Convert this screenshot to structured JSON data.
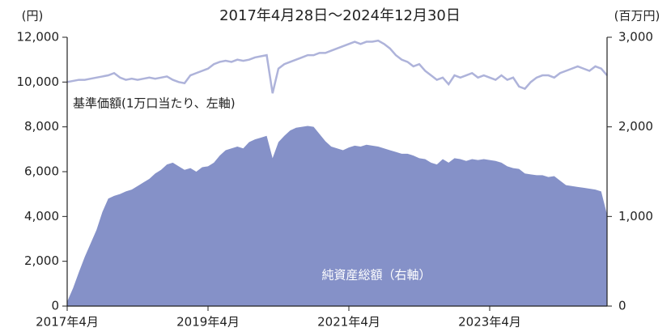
{
  "chart_data": {
    "type": "line",
    "title": "2017年4月28日～2024年12月30日",
    "y_unit": "(円)",
    "y2_unit": "(百万円)",
    "x": [
      "2017-04",
      "2017-05",
      "2017-06",
      "2017-07",
      "2017-08",
      "2017-09",
      "2017-10",
      "2017-11",
      "2017-12",
      "2018-01",
      "2018-02",
      "2018-03",
      "2018-04",
      "2018-05",
      "2018-06",
      "2018-07",
      "2018-08",
      "2018-09",
      "2018-10",
      "2018-11",
      "2018-12",
      "2019-01",
      "2019-02",
      "2019-03",
      "2019-04",
      "2019-05",
      "2019-06",
      "2019-07",
      "2019-08",
      "2019-09",
      "2019-10",
      "2019-11",
      "2019-12",
      "2020-01",
      "2020-02",
      "2020-03",
      "2020-04",
      "2020-05",
      "2020-06",
      "2020-07",
      "2020-08",
      "2020-09",
      "2020-10",
      "2020-11",
      "2020-12",
      "2021-01",
      "2021-02",
      "2021-03",
      "2021-04",
      "2021-05",
      "2021-06",
      "2021-07",
      "2021-08",
      "2021-09",
      "2021-10",
      "2021-11",
      "2021-12",
      "2022-01",
      "2022-02",
      "2022-03",
      "2022-04",
      "2022-05",
      "2022-06",
      "2022-07",
      "2022-08",
      "2022-09",
      "2022-10",
      "2022-11",
      "2022-12",
      "2023-01",
      "2023-02",
      "2023-03",
      "2023-04",
      "2023-05",
      "2023-06",
      "2023-07",
      "2023-08",
      "2023-09",
      "2023-10",
      "2023-11",
      "2023-12",
      "2024-01",
      "2024-02",
      "2024-03",
      "2024-04",
      "2024-05",
      "2024-06",
      "2024-07",
      "2024-08",
      "2024-09",
      "2024-10",
      "2024-11",
      "2024-12"
    ],
    "series": [
      {
        "name": "基準価額(1万口当たり、左軸)",
        "type": "line",
        "color": "#aeb3da",
        "axis": "y",
        "values": [
          10000,
          10050,
          10100,
          10100,
          10150,
          10200,
          10250,
          10300,
          10400,
          10200,
          10100,
          10150,
          10100,
          10150,
          10200,
          10150,
          10200,
          10250,
          10100,
          10000,
          9950,
          10300,
          10400,
          10500,
          10600,
          10800,
          10900,
          10950,
          10900,
          11000,
          10950,
          11000,
          11100,
          11150,
          11200,
          9500,
          10600,
          10800,
          10900,
          11000,
          11100,
          11200,
          11200,
          11300,
          11300,
          11400,
          11500,
          11600,
          11700,
          11800,
          11700,
          11800,
          11800,
          11850,
          11700,
          11500,
          11200,
          11000,
          10900,
          10700,
          10800,
          10500,
          10300,
          10100,
          10200,
          9900,
          10300,
          10200,
          10300,
          10400,
          10200,
          10300,
          10200,
          10100,
          10300,
          10100,
          10200,
          9800,
          9700,
          10000,
          10200,
          10300,
          10300,
          10200,
          10400,
          10500,
          10600,
          10700,
          10600,
          10500,
          10700,
          10600,
          10300
        ]
      },
      {
        "name": "純資産総額（右軸）",
        "type": "area",
        "color": "#8591c8",
        "axis": "y2",
        "values": [
          50,
          200,
          380,
          550,
          700,
          850,
          1050,
          1200,
          1230,
          1250,
          1280,
          1300,
          1340,
          1380,
          1420,
          1480,
          1520,
          1580,
          1600,
          1560,
          1520,
          1540,
          1500,
          1550,
          1560,
          1600,
          1680,
          1740,
          1760,
          1780,
          1760,
          1830,
          1860,
          1880,
          1900,
          1650,
          1830,
          1900,
          1960,
          1990,
          2000,
          2010,
          2000,
          1920,
          1840,
          1780,
          1760,
          1740,
          1770,
          1790,
          1780,
          1800,
          1790,
          1780,
          1760,
          1740,
          1720,
          1700,
          1700,
          1680,
          1650,
          1640,
          1600,
          1580,
          1640,
          1600,
          1650,
          1640,
          1620,
          1640,
          1630,
          1640,
          1630,
          1620,
          1600,
          1560,
          1540,
          1530,
          1480,
          1470,
          1460,
          1460,
          1440,
          1450,
          1400,
          1350,
          1340,
          1330,
          1320,
          1310,
          1300,
          1280,
          1020
        ]
      }
    ],
    "xlim": [
      "2017-04",
      "2024-12"
    ],
    "xticks": [
      {
        "value": "2017-04",
        "label": "2017年4月"
      },
      {
        "value": "2019-04",
        "label": "2019年4月"
      },
      {
        "value": "2021-04",
        "label": "2021年4月"
      },
      {
        "value": "2023-04",
        "label": "2023年4月"
      }
    ],
    "ylim": [
      0,
      12000
    ],
    "yticks": [
      0,
      {
        "value": 2000,
        "label": "2,000"
      },
      {
        "value": 4000,
        "label": "4,000"
      },
      {
        "value": 6000,
        "label": "6,000"
      },
      {
        "value": 8000,
        "label": "8,000"
      },
      {
        "value": 10000,
        "label": "10,000"
      },
      {
        "value": 12000,
        "label": "12,000"
      }
    ],
    "y2lim": [
      0,
      3000
    ],
    "y2ticks": [
      0,
      {
        "value": 1000,
        "label": "1,000"
      },
      {
        "value": 2000,
        "label": "2,000"
      },
      {
        "value": 3000,
        "label": "3,000"
      }
    ]
  }
}
